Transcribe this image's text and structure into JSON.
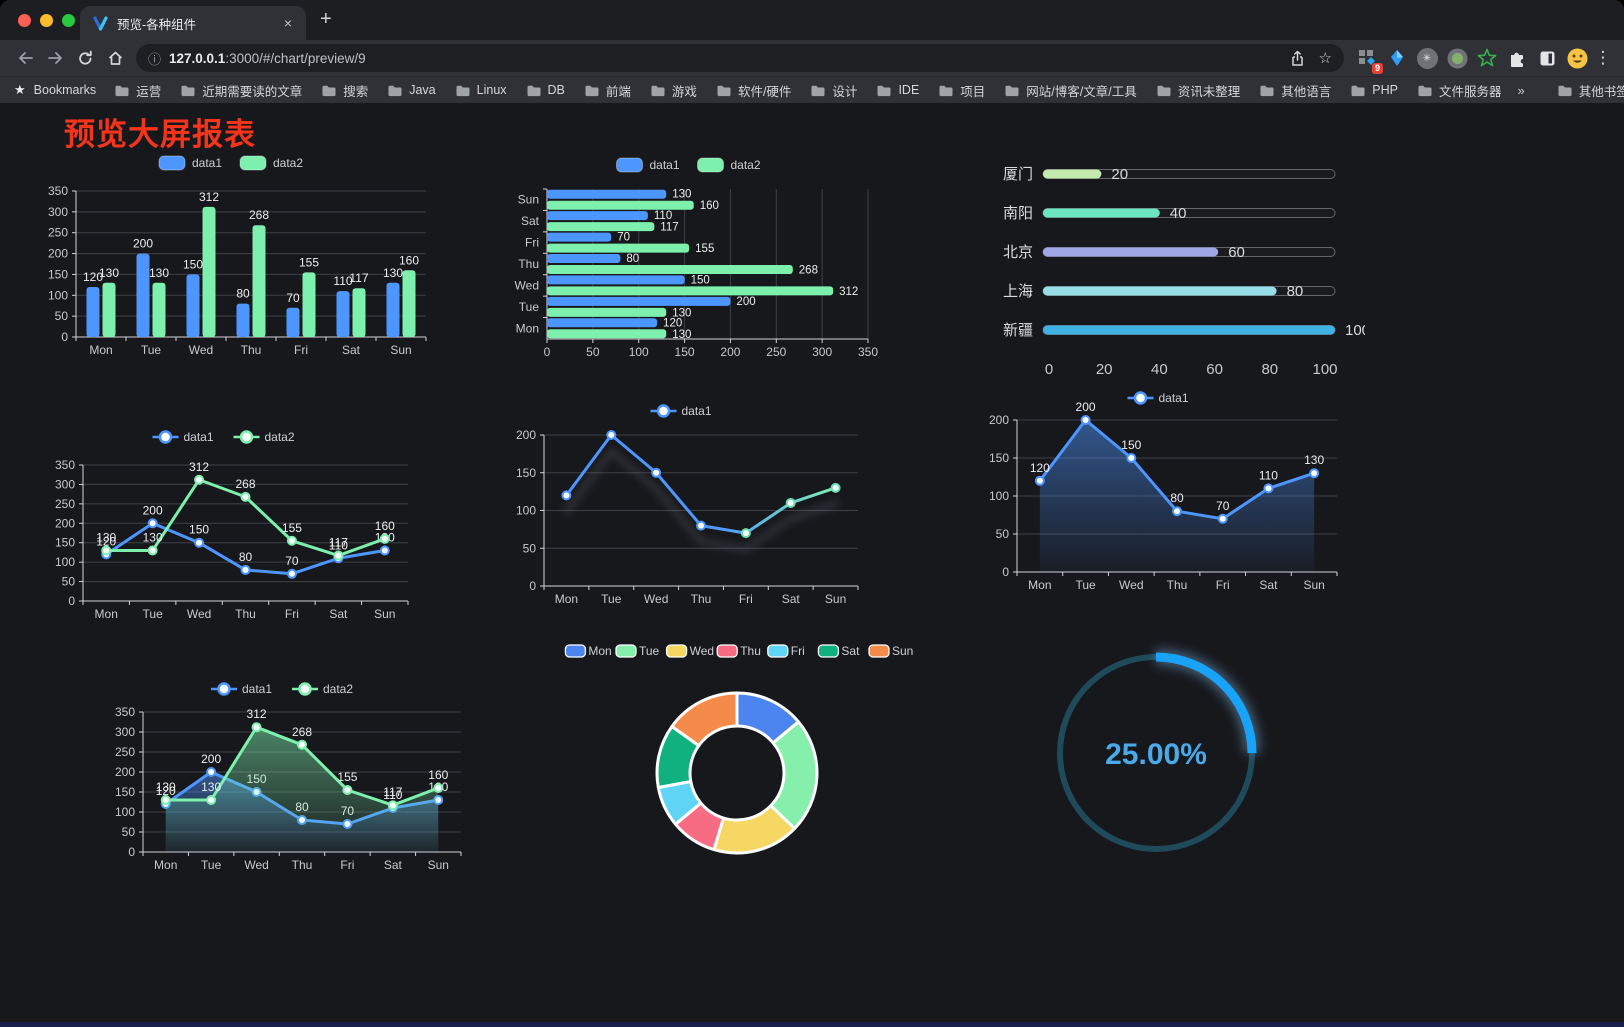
{
  "browser": {
    "tab": {
      "title": "预览-各种组件",
      "close": "×",
      "new_tab": "+"
    },
    "url": {
      "host": "127.0.0.1",
      "rest": ":3000/#/chart/preview/9"
    },
    "glyphs": {
      "info": "ⓘ",
      "bookmarks_star": "★",
      "url_star": "☆",
      "menu_dots": "⋮",
      "chevron": "»",
      "asterisk": "✳"
    },
    "extension_badge": "9",
    "bookmarks_label": "Bookmarks",
    "bookmarks": [
      "运营",
      "近期需要读的文章",
      "搜索",
      "Java",
      "Linux",
      "DB",
      "前端",
      "游戏",
      "软件/硬件",
      "设计",
      "IDE",
      "项目",
      "网站/博客/文章/工具",
      "资讯未整理",
      "其他语言",
      "PHP",
      "文件服务器"
    ],
    "other_bookmarks": "其他书签"
  },
  "page": {
    "title": "预览大屏报表",
    "title_color": "#f5341c",
    "background": "#17181c"
  },
  "chart_data": [
    {
      "type": "bar",
      "legend_position": "top",
      "grid": true,
      "value_labels": true,
      "categories": [
        "Mon",
        "Tue",
        "Wed",
        "Thu",
        "Fri",
        "Sat",
        "Sun"
      ],
      "series": [
        {
          "name": "data1",
          "color": "#4d96ff",
          "values": [
            120,
            200,
            150,
            80,
            70,
            110,
            130
          ]
        },
        {
          "name": "data2",
          "color": "#7df0ad",
          "values": [
            130,
            130,
            312,
            268,
            155,
            117,
            160
          ]
        }
      ],
      "ylim": [
        0,
        350
      ],
      "yticks": [
        0,
        50,
        100,
        150,
        200,
        250,
        300,
        350
      ]
    },
    {
      "type": "bar-horizontal",
      "legend_position": "top",
      "grid": true,
      "value_labels": true,
      "categories": [
        "Mon",
        "Tue",
        "Wed",
        "Thu",
        "Fri",
        "Sat",
        "Sun"
      ],
      "series": [
        {
          "name": "data1",
          "color": "#4d96ff",
          "values": [
            120,
            200,
            150,
            80,
            70,
            110,
            130
          ]
        },
        {
          "name": "data2",
          "color": "#7df0ad",
          "values": [
            130,
            130,
            312,
            268,
            155,
            117,
            160
          ]
        }
      ],
      "xlim": [
        0,
        350
      ],
      "xticks": [
        0,
        50,
        100,
        150,
        200,
        250,
        300,
        350
      ]
    },
    {
      "type": "progress",
      "max": 100,
      "xticks": [
        0,
        20,
        40,
        60,
        80,
        100
      ],
      "items": [
        {
          "label": "厦门",
          "value": 20,
          "color": "#c4ebad"
        },
        {
          "label": "南阳",
          "value": 40,
          "color": "#6be6c1"
        },
        {
          "label": "北京",
          "value": 60,
          "color": "#a0a7e6"
        },
        {
          "label": "上海",
          "value": 80,
          "color": "#96dee8"
        },
        {
          "label": "新疆",
          "value": 100,
          "color": "#3fb1e3"
        }
      ]
    },
    {
      "type": "line",
      "legend_position": "top",
      "grid": true,
      "value_labels": true,
      "area": false,
      "categories": [
        "Mon",
        "Tue",
        "Wed",
        "Thu",
        "Fri",
        "Sat",
        "Sun"
      ],
      "series": [
        {
          "name": "data1",
          "color": "#4d96ff",
          "values": [
            120,
            200,
            150,
            80,
            70,
            110,
            130
          ]
        },
        {
          "name": "data2",
          "color": "#7df0ad",
          "values": [
            130,
            130,
            312,
            268,
            155,
            117,
            160
          ]
        }
      ],
      "ylim": [
        0,
        350
      ],
      "yticks": [
        0,
        50,
        100,
        150,
        200,
        250,
        300,
        350
      ]
    },
    {
      "type": "line",
      "legend_position": "top",
      "grid": true,
      "value_labels": false,
      "area": false,
      "shadow": true,
      "categories": [
        "Mon",
        "Tue",
        "Wed",
        "Thu",
        "Fri",
        "Sat",
        "Sun"
      ],
      "series": [
        {
          "name": "data1",
          "gradient": [
            "#4d96ff",
            "#7df0ad"
          ],
          "values": [
            120,
            200,
            150,
            80,
            70,
            110,
            130
          ]
        }
      ],
      "ylim": [
        0,
        200
      ],
      "yticks": [
        0,
        50,
        100,
        150,
        200
      ]
    },
    {
      "type": "line",
      "legend_position": "top",
      "grid": true,
      "value_labels": true,
      "area": true,
      "categories": [
        "Mon",
        "Tue",
        "Wed",
        "Thu",
        "Fri",
        "Sat",
        "Sun"
      ],
      "series": [
        {
          "name": "data1",
          "color": "#4d96ff",
          "values": [
            120,
            200,
            150,
            80,
            70,
            110,
            130
          ]
        }
      ],
      "ylim": [
        0,
        200
      ],
      "yticks": [
        0,
        50,
        100,
        150,
        200
      ]
    },
    {
      "type": "line",
      "legend_position": "top",
      "grid": true,
      "value_labels": true,
      "area": true,
      "categories": [
        "Mon",
        "Tue",
        "Wed",
        "Thu",
        "Fri",
        "Sat",
        "Sun"
      ],
      "series": [
        {
          "name": "data1",
          "color": "#4d96ff",
          "values": [
            120,
            200,
            150,
            80,
            70,
            110,
            130
          ]
        },
        {
          "name": "data2",
          "color": "#7df0ad",
          "values": [
            130,
            130,
            312,
            268,
            155,
            117,
            160
          ]
        }
      ],
      "ylim": [
        0,
        350
      ],
      "yticks": [
        0,
        50,
        100,
        150,
        200,
        250,
        300,
        350
      ]
    },
    {
      "type": "pie",
      "legend_position": "top",
      "inner_radius_ratio": 0.59,
      "labels": [
        "Mon",
        "Tue",
        "Wed",
        "Thu",
        "Fri",
        "Sat",
        "Sun"
      ],
      "values": [
        120,
        200,
        150,
        80,
        70,
        110,
        130
      ],
      "colors": [
        "#4d85f0",
        "#86efac",
        "#f7d764",
        "#f76c82",
        "#5fd4f5",
        "#10b07f",
        "#f58b4a"
      ]
    },
    {
      "type": "gauge",
      "percent": 25,
      "display": "25.00%",
      "color": "#19a3f8",
      "track_color": "#1e4a59",
      "text_color": "#4aa9e9"
    }
  ]
}
